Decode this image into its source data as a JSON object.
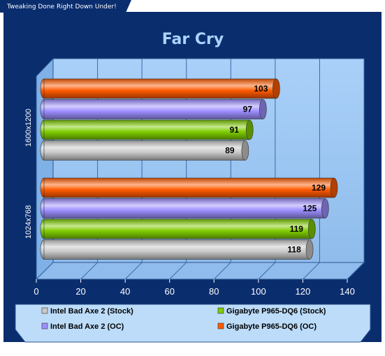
{
  "banner": {
    "tagline": "Tweaking Done Right Down Under!"
  },
  "colors": {
    "frame": "#0a2d6e",
    "plot_back": "#9fc8f4",
    "legend_back": "#bcdcfa",
    "grid": "#3a6aa8",
    "title": "#a9d4ff"
  },
  "chart_data": {
    "type": "bar",
    "orientation": "horizontal",
    "title": "Far Cry",
    "xlabel": "",
    "ylabel": "",
    "xlim": [
      0,
      140
    ],
    "x_ticks": [
      "0",
      "20",
      "40",
      "60",
      "80",
      "100",
      "120",
      "140"
    ],
    "grid": true,
    "legend_position": "bottom",
    "categories": [
      "1600x1200",
      "1024x768"
    ],
    "series": [
      {
        "name": "Gigabyte P965-DQ6 (OC)",
        "color": "#ff5a00",
        "values": [
          103,
          129
        ]
      },
      {
        "name": "Intel Bad Axe 2 (OC)",
        "color": "#9d8fff",
        "values": [
          97,
          125
        ]
      },
      {
        "name": "Gigabyte P965-DQ6 (Stock)",
        "color": "#7fcc00",
        "values": [
          91,
          119
        ]
      },
      {
        "name": "Intel Bad Axe 2 (Stock)",
        "color": "#c8c8c8",
        "values": [
          89,
          118
        ]
      }
    ],
    "legend_order": [
      "Intel Bad Axe 2 (Stock)",
      "Gigabyte P965-DQ6 (Stock)",
      "Intel Bad Axe 2 (OC)",
      "Gigabyte P965-DQ6 (OC)"
    ]
  }
}
